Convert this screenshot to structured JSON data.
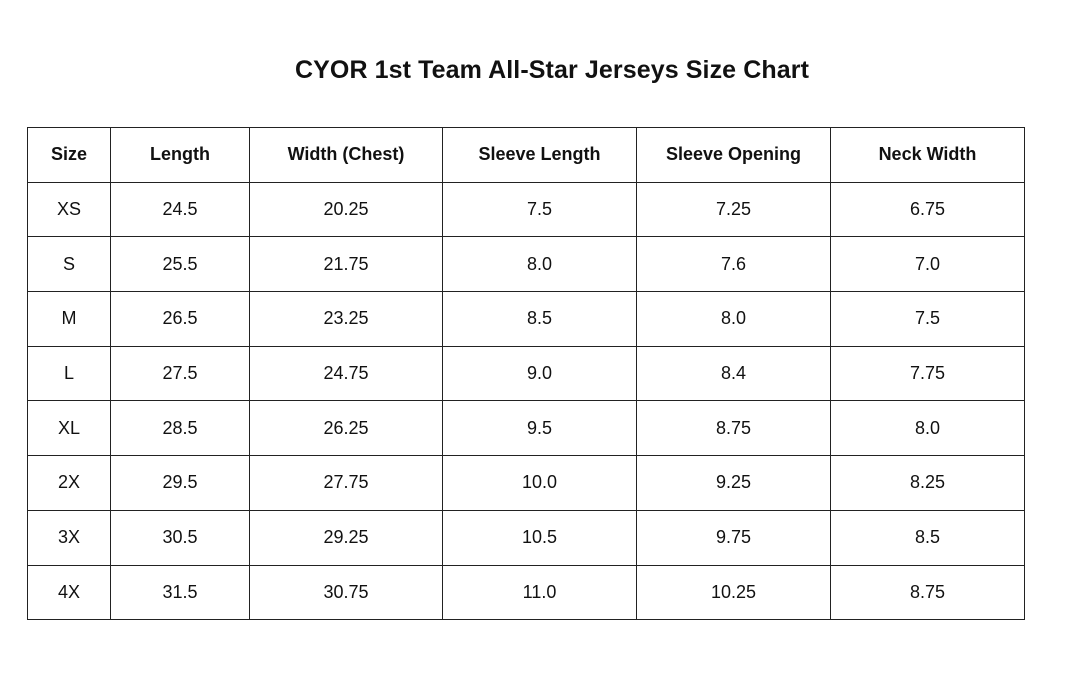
{
  "title": "CYOR 1st Team All-Star Jerseys Size Chart",
  "table": {
    "headers": [
      "Size",
      "Length",
      "Width (Chest)",
      "Sleeve Length",
      "Sleeve Opening",
      "Neck Width"
    ],
    "rows": [
      [
        "XS",
        "24.5",
        "20.25",
        "7.5",
        "7.25",
        "6.75"
      ],
      [
        "S",
        "25.5",
        "21.75",
        "8.0",
        "7.6",
        "7.0"
      ],
      [
        "M",
        "26.5",
        "23.25",
        "8.5",
        "8.0",
        "7.5"
      ],
      [
        "L",
        "27.5",
        "24.75",
        "9.0",
        "8.4",
        "7.75"
      ],
      [
        "XL",
        "28.5",
        "26.25",
        "9.5",
        "8.75",
        "8.0"
      ],
      [
        "2X",
        "29.5",
        "27.75",
        "10.0",
        "9.25",
        "8.25"
      ],
      [
        "3X",
        "30.5",
        "29.25",
        "10.5",
        "9.75",
        "8.5"
      ],
      [
        "4X",
        "31.5",
        "30.75",
        "11.0",
        "10.25",
        "8.75"
      ]
    ]
  }
}
